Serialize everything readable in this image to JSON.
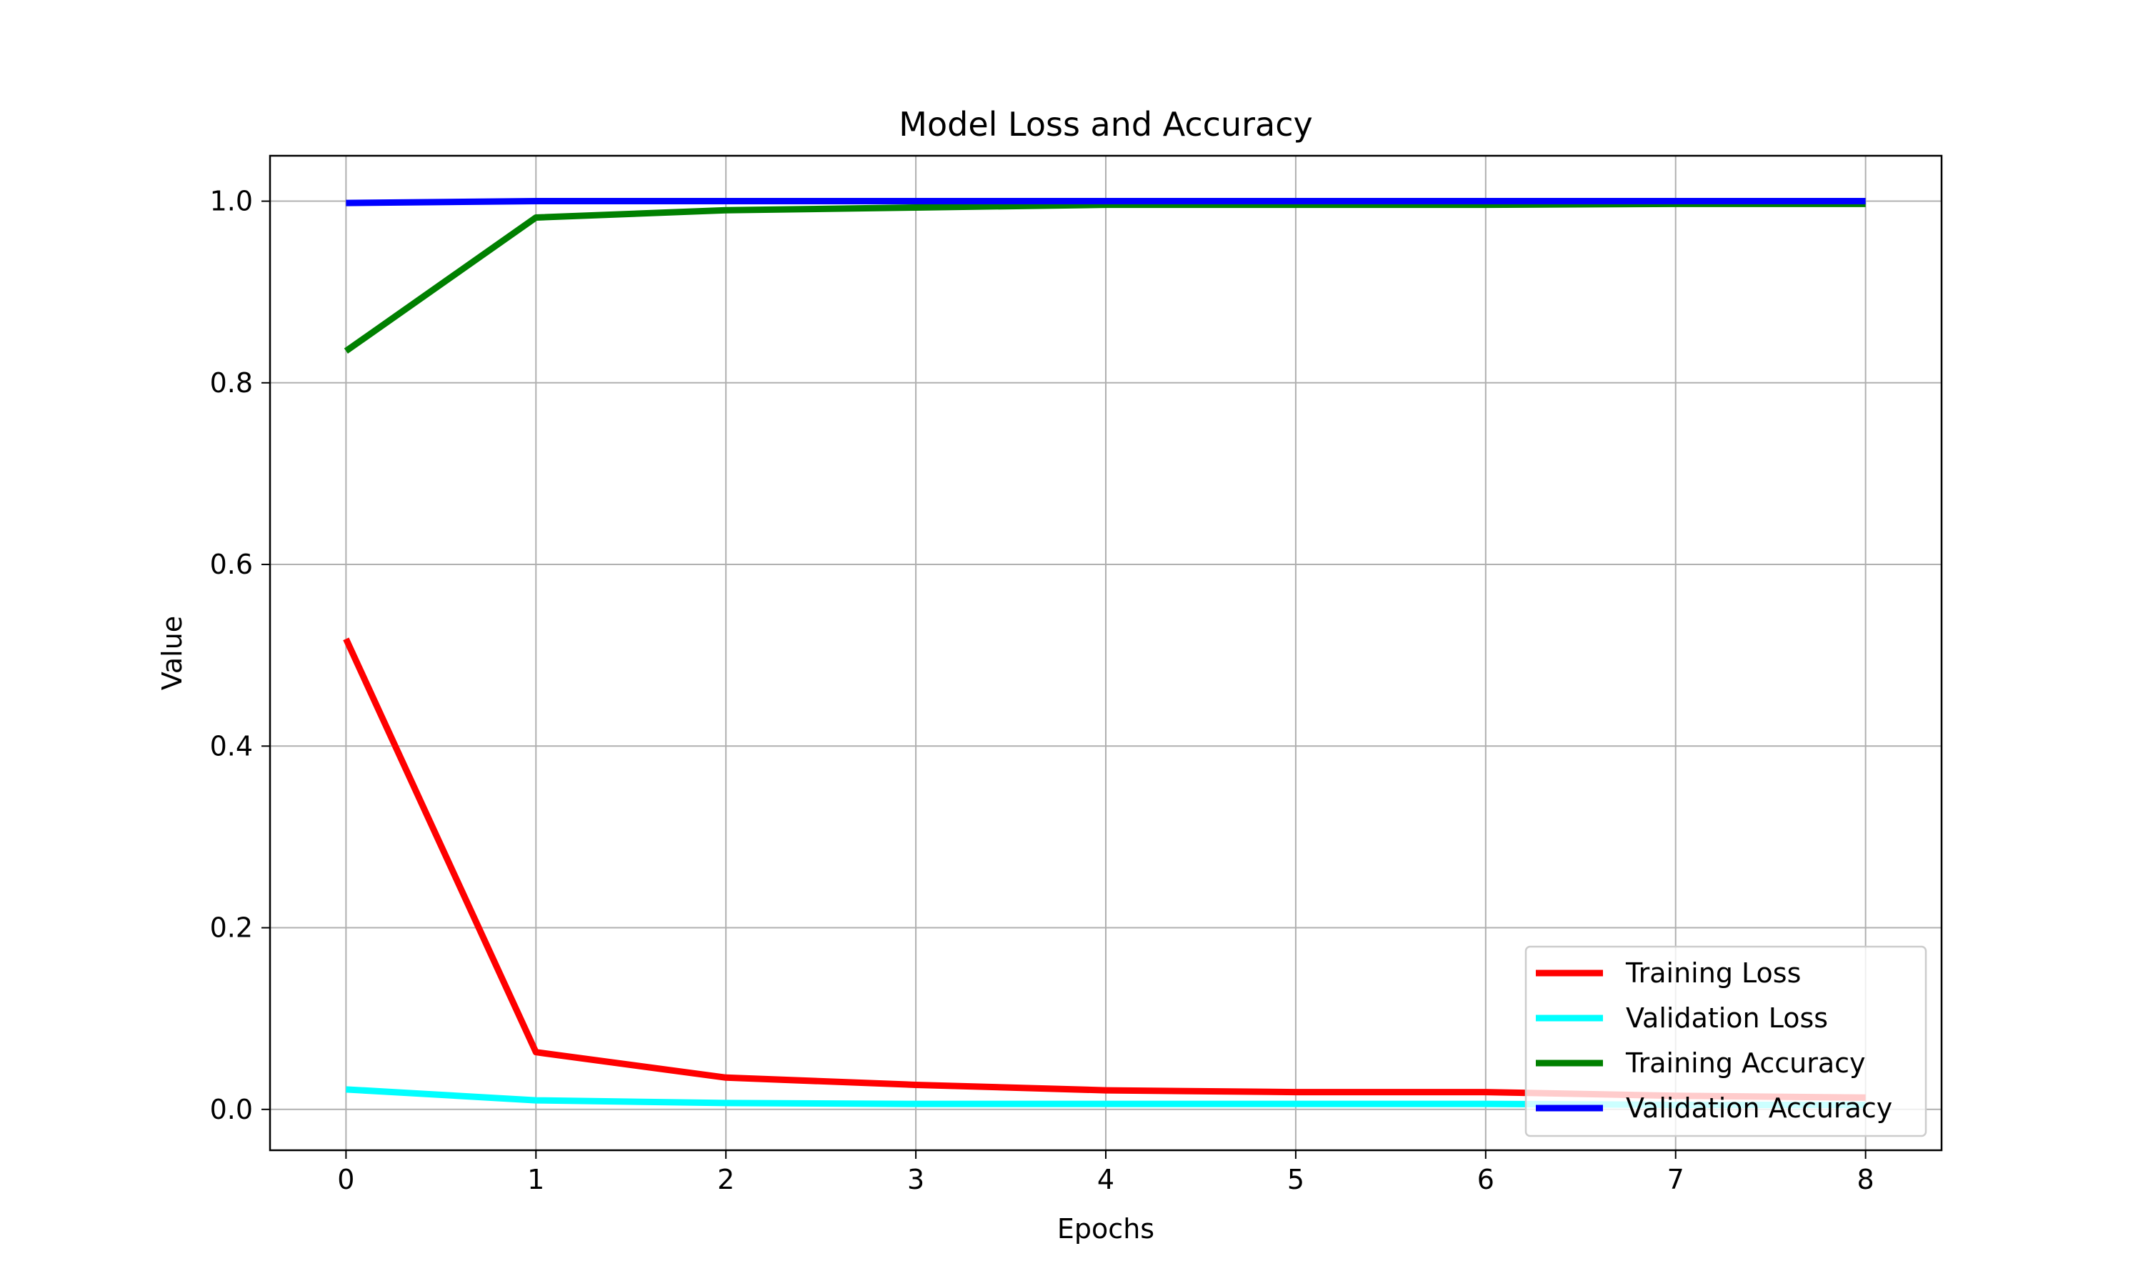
{
  "chart_data": {
    "type": "line",
    "title": "Model Loss and Accuracy",
    "xlabel": "Epochs",
    "ylabel": "Value",
    "xlim": [
      -0.4,
      8.4
    ],
    "ylim": [
      -0.045,
      1.05
    ],
    "xticks": [
      0,
      1,
      2,
      3,
      4,
      5,
      6,
      7,
      8
    ],
    "xtick_labels": [
      "0",
      "1",
      "2",
      "3",
      "4",
      "5",
      "6",
      "7",
      "8"
    ],
    "yticks": [
      0.0,
      0.2,
      0.4,
      0.6,
      0.8,
      1.0
    ],
    "ytick_labels": [
      "0.0",
      "0.2",
      "0.4",
      "0.6",
      "0.8",
      "1.0"
    ],
    "grid": true,
    "legend_position": "lower right",
    "x": [
      0,
      1,
      2,
      3,
      4,
      5,
      6,
      7,
      8
    ],
    "series": [
      {
        "name": "Training Loss",
        "color": "#ff0000",
        "values": [
          0.518,
          0.063,
          0.035,
          0.027,
          0.021,
          0.019,
          0.019,
          0.015,
          0.013
        ]
      },
      {
        "name": "Validation Loss",
        "color": "#00ffff",
        "values": [
          0.022,
          0.01,
          0.007,
          0.006,
          0.006,
          0.006,
          0.006,
          0.005,
          0.005
        ]
      },
      {
        "name": "Training Accuracy",
        "color": "#008000",
        "values": [
          0.835,
          0.982,
          0.99,
          0.993,
          0.996,
          0.996,
          0.996,
          0.997,
          0.997
        ]
      },
      {
        "name": "Validation Accuracy",
        "color": "#0000ff",
        "values": [
          0.998,
          1.0,
          1.0,
          1.0,
          1.0,
          1.0,
          1.0,
          1.0,
          1.0
        ]
      }
    ]
  }
}
